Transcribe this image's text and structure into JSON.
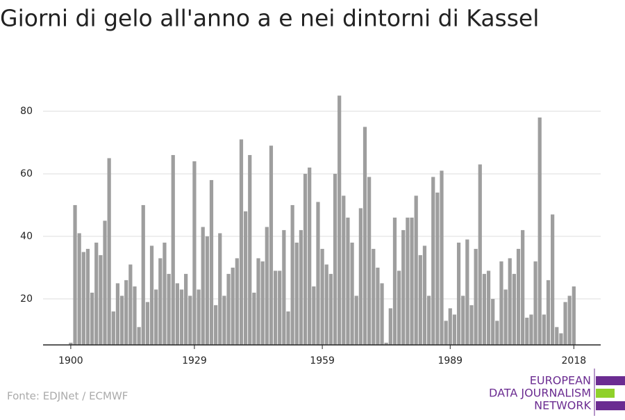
{
  "chart_data": {
    "type": "bar",
    "title": "Giorni di gelo all'anno a e nei dintorni di Kassel",
    "source": "Fonte: EDJNet / ECMWF",
    "logo": [
      "EUROPEAN",
      "DATA JOURNALISM",
      "NETWORK"
    ],
    "color": "#9e9e9e",
    "grid": true,
    "x": [
      1900,
      1901,
      1902,
      1903,
      1904,
      1905,
      1906,
      1907,
      1908,
      1909,
      1910,
      1911,
      1912,
      1913,
      1914,
      1915,
      1916,
      1917,
      1918,
      1919,
      1920,
      1921,
      1922,
      1923,
      1924,
      1925,
      1926,
      1927,
      1928,
      1929,
      1930,
      1931,
      1932,
      1933,
      1934,
      1935,
      1936,
      1937,
      1938,
      1939,
      1940,
      1941,
      1942,
      1943,
      1944,
      1945,
      1946,
      1947,
      1948,
      1949,
      1950,
      1951,
      1952,
      1953,
      1954,
      1955,
      1956,
      1957,
      1958,
      1959,
      1960,
      1961,
      1962,
      1963,
      1964,
      1965,
      1966,
      1967,
      1968,
      1969,
      1970,
      1971,
      1972,
      1973,
      1974,
      1975,
      1976,
      1977,
      1978,
      1979,
      1980,
      1981,
      1982,
      1983,
      1984,
      1985,
      1986,
      1987,
      1988,
      1989,
      1990,
      1991,
      1992,
      1993,
      1994,
      1995,
      1996,
      1997,
      1998,
      1999,
      2000,
      2001,
      2002,
      2003,
      2004,
      2005,
      2006,
      2007,
      2008,
      2009,
      2010,
      2011,
      2012,
      2013,
      2014,
      2015,
      2016,
      2017,
      2018
    ],
    "values": [
      6,
      50,
      41,
      35,
      36,
      22,
      38,
      34,
      45,
      65,
      16,
      25,
      21,
      26,
      31,
      24,
      11,
      50,
      19,
      37,
      23,
      33,
      38,
      28,
      66,
      25,
      23,
      28,
      21,
      64,
      23,
      43,
      40,
      58,
      18,
      41,
      21,
      28,
      30,
      33,
      71,
      48,
      66,
      22,
      33,
      32,
      43,
      69,
      29,
      29,
      42,
      16,
      50,
      38,
      42,
      60,
      62,
      24,
      51,
      36,
      31,
      28,
      60,
      85,
      53,
      46,
      38,
      21,
      49,
      75,
      59,
      36,
      30,
      25,
      6,
      17,
      46,
      29,
      42,
      46,
      46,
      53,
      34,
      37,
      21,
      59,
      54,
      61,
      13,
      17,
      15,
      38,
      21,
      39,
      18,
      36,
      63,
      28,
      29,
      20,
      13,
      32,
      23,
      33,
      28,
      36,
      42,
      14,
      15,
      32,
      78,
      15,
      26,
      47,
      11,
      9,
      19,
      21,
      24
    ],
    "xlim": [
      1893.5,
      2024.3
    ],
    "xticks": [
      1900,
      1929,
      1959,
      1989,
      2018
    ],
    "ylim": [
      5.3,
      90
    ],
    "yticks": [
      20,
      40,
      60,
      80
    ]
  }
}
